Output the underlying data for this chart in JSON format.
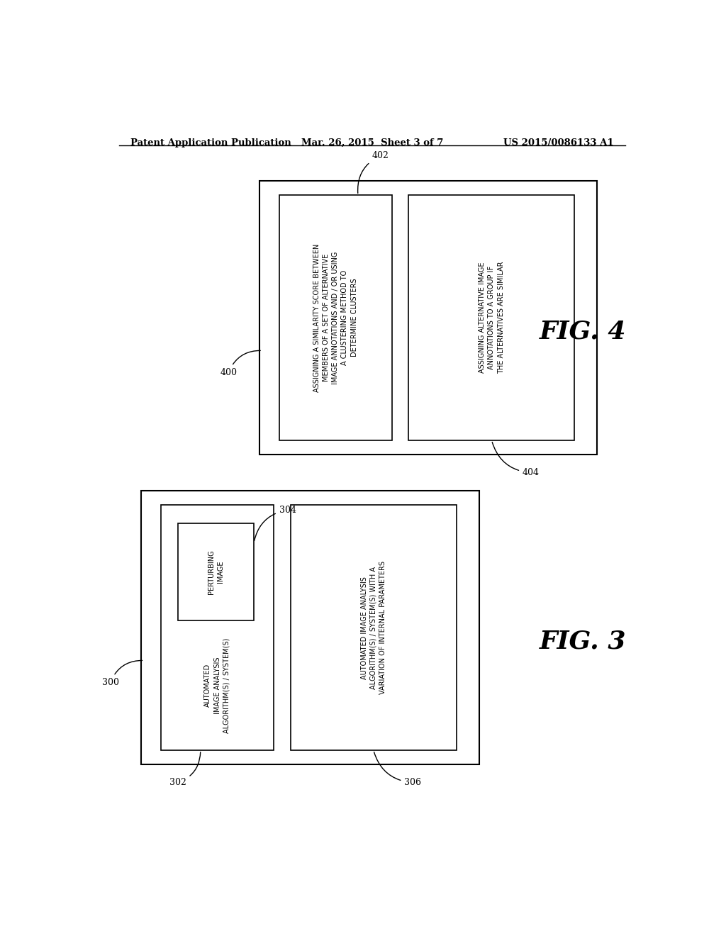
{
  "background_color": "#ffffff",
  "header_left": "Patent Application Publication",
  "header_center": "Mar. 26, 2015  Sheet 3 of 7",
  "header_right": "US 2015/0086133 A1",
  "fig4_outer": [
    0.3,
    0.525,
    0.6,
    0.38
  ],
  "fig4_ib1": [
    0.335,
    0.545,
    0.2,
    0.34
  ],
  "fig4_ib2": [
    0.565,
    0.545,
    0.295,
    0.34
  ],
  "fig4_text1": "ASSIGNING A SIMILARITY SCORE BETWEEN\nMEMBERS OF A SET OF ALTERNATIVE\nIMAGE ANNOTATIONS AND / OR USING\nA CLUSTERING METHOD TO\nDETERMINE CLUSTERS",
  "fig4_text2": "ASSIGNING ALTERNATIVE IMAGE\nANNOTATIONS TO A GROUP IF\nTHE ALTERNATIVES ARE SIMILAR",
  "fig4_label": "FIG. 4",
  "lbl_400": "400",
  "lbl_402": "402",
  "lbl_404": "404",
  "fig3_outer": [
    0.09,
    0.095,
    0.6,
    0.38
  ],
  "fig3_ib1": [
    0.125,
    0.115,
    0.2,
    0.34
  ],
  "fig3_perturb": [
    0.155,
    0.295,
    0.135,
    0.135
  ],
  "fig3_ib2": [
    0.355,
    0.115,
    0.295,
    0.34
  ],
  "fig3_text1": "AUTOMATED\nIMAGE ANALYSIS\nALGORITHM(S) / SYSTEM(S)",
  "fig3_text_perturb": "PERTURBING\nIMAGE",
  "fig3_text2": "AUTOMATED IMAGE ANALYSIS\nALGORITHM(S) / SYSTEM(S) WITH A\nVARIATION OF INTERNAL PARAMETERS",
  "fig3_label": "FIG. 3",
  "lbl_300": "300",
  "lbl_302": "302",
  "lbl_304": "304",
  "lbl_306": "306"
}
